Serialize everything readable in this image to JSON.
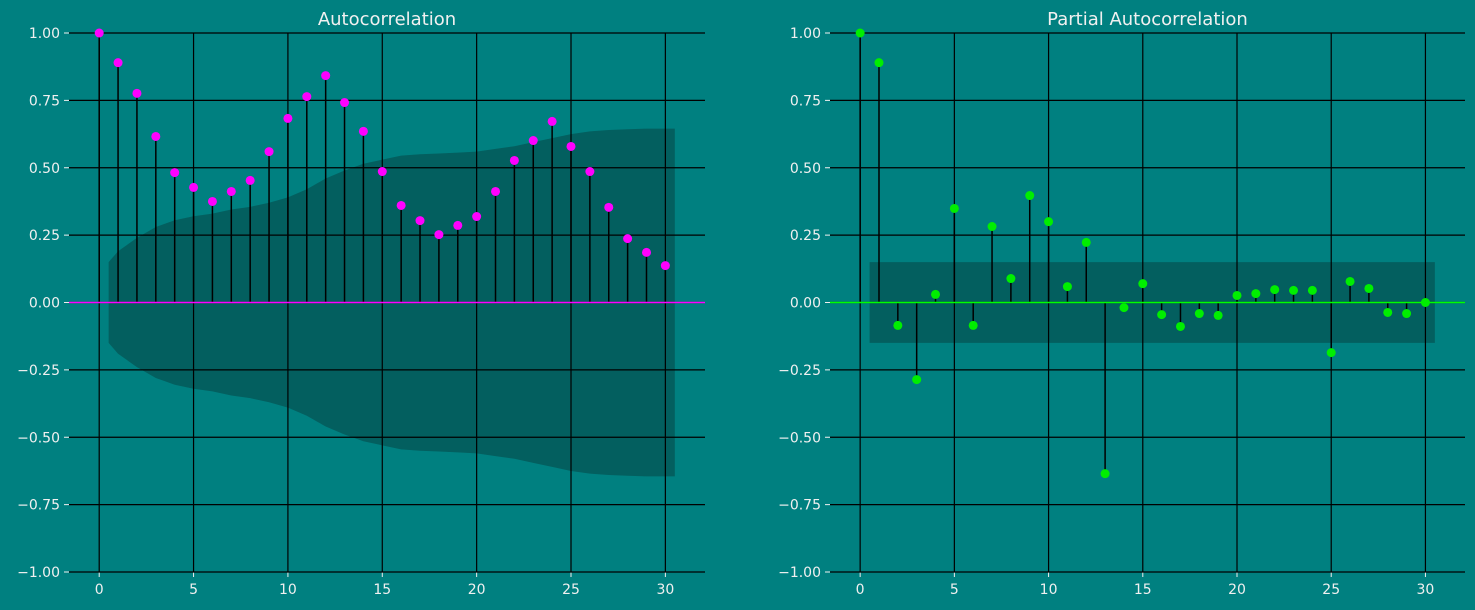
{
  "chart_data": [
    {
      "type": "scatter",
      "subtype": "stem",
      "title": "Autocorrelation",
      "xlabel": "",
      "ylabel": "",
      "xlim": [
        -1.6,
        32.1
      ],
      "ylim": [
        -1.0,
        1.0
      ],
      "xticks": [
        0,
        5,
        10,
        15,
        20,
        25,
        30
      ],
      "yticks": [
        -1.0,
        -0.75,
        -0.5,
        -0.25,
        0.0,
        0.25,
        0.5,
        0.75,
        1.0
      ],
      "ytick_labels": [
        "−1.00",
        "−0.75",
        "−0.50",
        "−0.25",
        "0.00",
        "0.25",
        "0.50",
        "0.75",
        "1.00"
      ],
      "grid": true,
      "marker_color": "#ff00ff",
      "zero_line_color": "#ff00ff",
      "lags": [
        0,
        1,
        2,
        3,
        4,
        5,
        6,
        7,
        8,
        9,
        10,
        11,
        12,
        13,
        14,
        15,
        16,
        17,
        18,
        19,
        20,
        21,
        22,
        23,
        24,
        25,
        26,
        27,
        28,
        29,
        30
      ],
      "values": [
        1.0,
        0.89,
        0.776,
        0.616,
        0.482,
        0.427,
        0.375,
        0.412,
        0.453,
        0.56,
        0.683,
        0.764,
        0.842,
        0.742,
        0.635,
        0.486,
        0.36,
        0.304,
        0.252,
        0.286,
        0.319,
        0.412,
        0.527,
        0.601,
        0.672,
        0.579,
        0.486,
        0.353,
        0.237,
        0.186,
        0.137
      ],
      "confint_x": [
        0.5,
        1,
        2,
        3,
        4,
        5,
        6,
        7,
        8,
        9,
        10,
        11,
        12,
        13,
        14,
        15,
        16,
        17,
        18,
        19,
        20,
        21,
        22,
        23,
        24,
        25,
        26,
        27,
        28,
        29,
        30,
        30.5
      ],
      "confint_upper": [
        0.15,
        0.19,
        0.24,
        0.28,
        0.305,
        0.32,
        0.33,
        0.345,
        0.355,
        0.37,
        0.39,
        0.42,
        0.46,
        0.49,
        0.515,
        0.53,
        0.545,
        0.55,
        0.553,
        0.556,
        0.56,
        0.57,
        0.58,
        0.595,
        0.61,
        0.625,
        0.635,
        0.64,
        0.643,
        0.645,
        0.645,
        0.645
      ]
    },
    {
      "type": "scatter",
      "subtype": "stem",
      "title": "Partial Autocorrelation",
      "xlabel": "",
      "ylabel": "",
      "xlim": [
        -1.6,
        32.1
      ],
      "ylim": [
        -1.0,
        1.0
      ],
      "xticks": [
        0,
        5,
        10,
        15,
        20,
        25,
        30
      ],
      "yticks": [
        -1.0,
        -0.75,
        -0.5,
        -0.25,
        0.0,
        0.25,
        0.5,
        0.75,
        1.0
      ],
      "ytick_labels": [
        "−1.00",
        "−0.75",
        "−0.50",
        "−0.25",
        "0.00",
        "0.25",
        "0.50",
        "0.75",
        "1.00"
      ],
      "grid": true,
      "marker_color": "#00ee00",
      "zero_line_color": "#00ff00",
      "lags": [
        0,
        1,
        2,
        3,
        4,
        5,
        6,
        7,
        8,
        9,
        10,
        11,
        12,
        13,
        14,
        15,
        16,
        17,
        18,
        19,
        20,
        21,
        22,
        23,
        24,
        25,
        26,
        27,
        28,
        29,
        30
      ],
      "values": [
        1.0,
        0.89,
        -0.085,
        -0.286,
        0.03,
        0.349,
        -0.085,
        0.282,
        0.089,
        0.397,
        0.3,
        0.059,
        0.223,
        -0.635,
        -0.019,
        0.07,
        -0.045,
        -0.089,
        -0.041,
        -0.048,
        0.026,
        0.033,
        0.048,
        0.045,
        0.045,
        -0.186,
        0.078,
        0.052,
        -0.037,
        -0.041,
        0.0
      ],
      "confint_x": [
        0.5,
        30.5
      ],
      "confint_upper": [
        0.15,
        0.15
      ]
    }
  ]
}
